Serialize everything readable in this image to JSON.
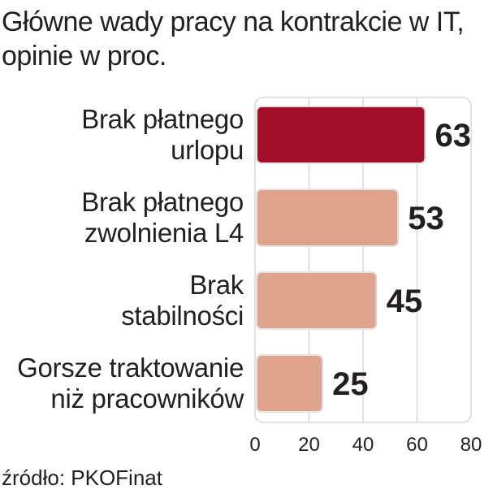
{
  "title": {
    "line1": "Główne wady pracy na kontrakcie w IT,",
    "line2": "opinie w proc."
  },
  "source": "źródło: PKOFinat",
  "colors": {
    "highlight": "#a30f2a",
    "bar": "#dda38d",
    "grid_bg": "#ffffff",
    "grid_line": "#d8d8d8",
    "text": "#231f20"
  },
  "chart_data": {
    "type": "bar",
    "orientation": "horizontal",
    "categories": [
      [
        "Brak płatnego",
        "urlopu"
      ],
      [
        "Brak płatnego",
        "zwolnienia L4"
      ],
      [
        "Brak",
        "stabilności"
      ],
      [
        "Gorsze traktowanie",
        "niż pracowników"
      ]
    ],
    "values": [
      63,
      53,
      45,
      25
    ],
    "highlight_index": 0,
    "xlim": [
      0,
      80
    ],
    "xticks": [
      0,
      20,
      40,
      60,
      80
    ],
    "grid": true
  }
}
